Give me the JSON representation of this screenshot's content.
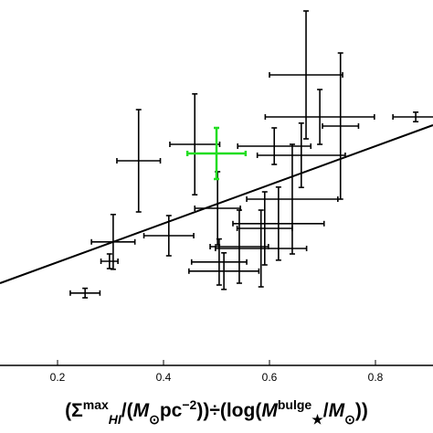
{
  "chart_data": {
    "type": "errorbar-scatter",
    "xlim": [
      0.0914,
      0.9086
    ],
    "ylim": [
      0,
      1
    ],
    "xticks": [
      0.2,
      0.4,
      0.6,
      0.8
    ],
    "xlabel": [
      {
        "text": "(Σ",
        "style": "base"
      },
      {
        "text": "max",
        "style": "sup"
      },
      {
        "text": "HI",
        "style": "sub-italic"
      },
      {
        "text": "/(",
        "style": "base"
      },
      {
        "text": "M",
        "style": "italic"
      },
      {
        "text": "⊙",
        "style": "sub"
      },
      {
        "text": "pc",
        "style": "base"
      },
      {
        "text": "−2",
        "style": "sup"
      },
      {
        "text": "))÷(log(",
        "style": "base"
      },
      {
        "text": "M",
        "style": "italic"
      },
      {
        "text": "bulge",
        "style": "sup"
      },
      {
        "text": "★",
        "style": "sub"
      },
      {
        "text": "/",
        "style": "base"
      },
      {
        "text": "M",
        "style": "italic"
      },
      {
        "text": "⊙",
        "style": "sub"
      },
      {
        "text": "))",
        "style": "base"
      }
    ],
    "series": [
      {
        "color": "#000000",
        "x": [
          0.252,
          0.298,
          0.305,
          0.353,
          0.41,
          0.459,
          0.502,
          0.505,
          0.514,
          0.543,
          0.584,
          0.591,
          0.617,
          0.643,
          0.66,
          0.609,
          0.669,
          0.695,
          0.734,
          0.876
        ],
        "y": [
          0.198,
          0.285,
          0.338,
          0.56,
          0.355,
          0.605,
          0.43,
          0.283,
          0.258,
          0.325,
          0.32,
          0.375,
          0.388,
          0.455,
          0.575,
          0.6,
          0.795,
          0.68,
          0.655,
          0.68
        ],
        "xerr": [
          0.028,
          0.016,
          0.041,
          0.041,
          0.047,
          0.047,
          0.043,
          0.052,
          0.066,
          0.055,
          0.086,
          0.052,
          0.086,
          0.086,
          0.083,
          0.069,
          0.069,
          0.103,
          0.034,
          0.043
        ],
        "yerr": [
          0.013,
          0.02,
          0.075,
          0.14,
          0.055,
          0.138,
          0.1,
          0.063,
          0.05,
          0.1,
          0.105,
          0.1,
          0.1,
          0.15,
          0.088,
          0.05,
          0.175,
          0.075,
          0.2,
          0.013
        ]
      },
      {
        "color": "#22dd22",
        "x": [
          0.5
        ],
        "y": [
          0.58
        ],
        "xerr": [
          0.055
        ],
        "yerr": [
          0.07
        ]
      }
    ],
    "fit": {
      "color": "#000000",
      "x": [
        0.0914,
        0.9086
      ],
      "y": [
        0.225,
        0.6575
      ]
    }
  }
}
